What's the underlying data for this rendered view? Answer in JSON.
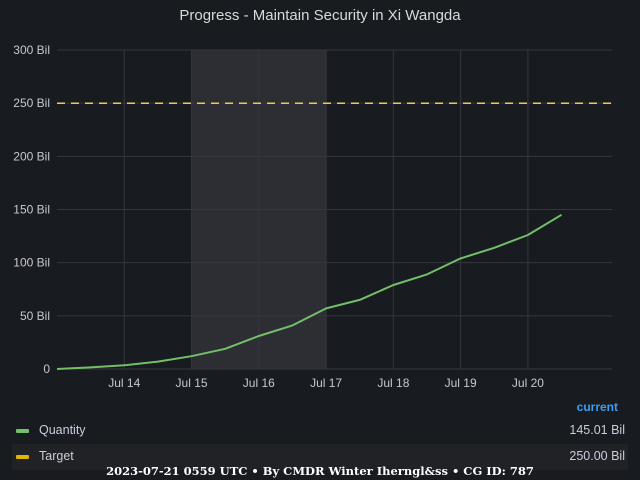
{
  "title": "Progress - Maintain Security in Xi Wangda",
  "chart_data": {
    "type": "line",
    "title": "Progress - Maintain Security in Xi Wangda",
    "xlabel": "",
    "ylabel": "",
    "x_ticks": [
      "Jul 14",
      "Jul 15",
      "Jul 16",
      "Jul 17",
      "Jul 18",
      "Jul 19",
      "Jul 20"
    ],
    "y_ticks": [
      "0",
      "50 Bil",
      "100 Bil",
      "150 Bil",
      "200 Bil",
      "250 Bil",
      "300 Bil"
    ],
    "xlim": [
      "2023-07-13T00:00",
      "2023-07-21T06:00"
    ],
    "ylim": [
      0,
      300
    ],
    "y_unit": "Bil",
    "grid": true,
    "legend_position": "bottom",
    "shaded_region": [
      "2023-07-15T00:00",
      "2023-07-17T00:00"
    ],
    "series": [
      {
        "name": "Quantity",
        "color": "#73bf69",
        "style": "solid",
        "points": [
          [
            "2023-07-13T00:00",
            0
          ],
          [
            "2023-07-13T12:00",
            1.5
          ],
          [
            "2023-07-14T00:00",
            3.5
          ],
          [
            "2023-07-14T12:00",
            7
          ],
          [
            "2023-07-15T00:00",
            12
          ],
          [
            "2023-07-15T12:00",
            19
          ],
          [
            "2023-07-16T00:00",
            31
          ],
          [
            "2023-07-16T12:00",
            41
          ],
          [
            "2023-07-17T00:00",
            57
          ],
          [
            "2023-07-17T12:00",
            65
          ],
          [
            "2023-07-18T00:00",
            79
          ],
          [
            "2023-07-18T12:00",
            89
          ],
          [
            "2023-07-19T00:00",
            104
          ],
          [
            "2023-07-19T12:00",
            114
          ],
          [
            "2023-07-20T00:00",
            126
          ],
          [
            "2023-07-20T12:00",
            145
          ]
        ]
      },
      {
        "name": "Target",
        "color": "#f2c94c",
        "style": "dashed",
        "points": [
          [
            "2023-07-13T00:00",
            250
          ],
          [
            "2023-07-21T06:00",
            250
          ]
        ]
      }
    ]
  },
  "legend": {
    "header": "current",
    "items": [
      {
        "name": "Quantity",
        "value": "145.01 Bil",
        "color": "#73bf69"
      },
      {
        "name": "Target",
        "value": "250.00 Bil",
        "color": "#e0b400"
      }
    ]
  },
  "footer": "2023-07-21 0559 UTC • By CMDR Winter Iherngl&ss • CG ID: 787"
}
